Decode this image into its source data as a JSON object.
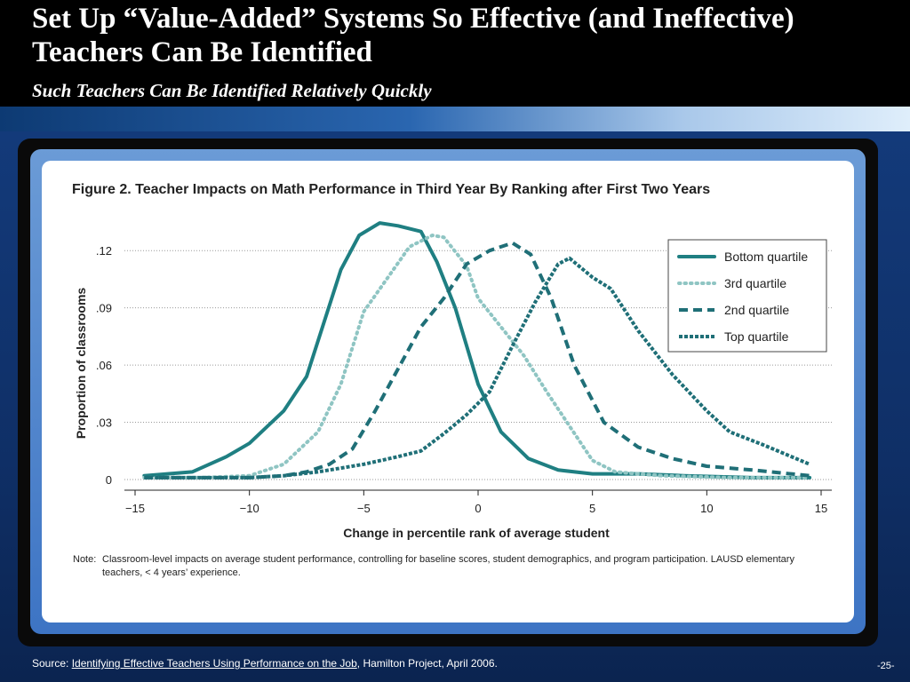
{
  "slide": {
    "title": "Set Up “Value-Added” Systems So Effective (and Ineffective) Teachers Can Be Identified",
    "subtitle": "Such Teachers Can Be Identified Relatively Quickly",
    "source_prefix": "Source: ",
    "source_link": "Identifying Effective Teachers Using Performance on the Job",
    "source_suffix": ", Hamilton Project, April 2006.",
    "page_number": "-25-"
  },
  "figure": {
    "title": "Figure 2. Teacher Impacts on Math Performance in Third Year By Ranking after First Two Years",
    "note_label": "Note:",
    "note_text": "Classroom-level impacts on average student performance, controlling for baseline scores, student demographics, and program participation. LAUSD elementary teachers, < 4 years’ experience."
  },
  "chart_data": {
    "type": "line",
    "title": "Figure 2. Teacher Impacts on Math Performance in Third Year By Ranking after First Two Years",
    "xlabel": "Change in percentile rank of average student",
    "ylabel": "Proportion of classrooms",
    "xlim": [
      -15,
      15
    ],
    "ylim": [
      0,
      0.135
    ],
    "x_ticks": [
      -15,
      -10,
      -5,
      0,
      5,
      10,
      15
    ],
    "x_tick_labels": [
      "−15",
      "−10",
      "−5",
      "0",
      "5",
      "10",
      "15"
    ],
    "y_ticks": [
      0,
      0.03,
      0.06,
      0.09,
      0.12
    ],
    "y_tick_labels": [
      "0",
      ".03",
      ".06",
      ".09",
      ".12"
    ],
    "grid": "horizontal dotted",
    "legend_position": "top-right",
    "series": [
      {
        "name": "Bottom quartile",
        "color": "#1f7f82",
        "dash": "solid",
        "points": [
          [
            -14.6,
            0.002
          ],
          [
            -12.5,
            0.004
          ],
          [
            -11,
            0.012
          ],
          [
            -10,
            0.019
          ],
          [
            -8.5,
            0.036
          ],
          [
            -7.5,
            0.054
          ],
          [
            -6,
            0.11
          ],
          [
            -5.2,
            0.128
          ],
          [
            -4.3,
            0.1345
          ],
          [
            -3.5,
            0.133
          ],
          [
            -2.5,
            0.13
          ],
          [
            -1.8,
            0.114
          ],
          [
            -1,
            0.09
          ],
          [
            0,
            0.05
          ],
          [
            1,
            0.025
          ],
          [
            2.2,
            0.011
          ],
          [
            3.5,
            0.005
          ],
          [
            5,
            0.003
          ],
          [
            7,
            0.003
          ],
          [
            9,
            0.002
          ],
          [
            12,
            0.001
          ],
          [
            14.5,
            0.001
          ]
        ]
      },
      {
        "name": "3rd quartile",
        "color": "#8fc5c3",
        "dash": "dotted",
        "points": [
          [
            -14.6,
            0.001
          ],
          [
            -12,
            0.001
          ],
          [
            -10,
            0.002
          ],
          [
            -8.5,
            0.008
          ],
          [
            -7,
            0.025
          ],
          [
            -6,
            0.05
          ],
          [
            -5,
            0.088
          ],
          [
            -4,
            0.105
          ],
          [
            -3,
            0.122
          ],
          [
            -2,
            0.128
          ],
          [
            -1.5,
            0.127
          ],
          [
            -0.5,
            0.112
          ],
          [
            0,
            0.095
          ],
          [
            1,
            0.08
          ],
          [
            2,
            0.065
          ],
          [
            3,
            0.046
          ],
          [
            4,
            0.028
          ],
          [
            5,
            0.01
          ],
          [
            6,
            0.004
          ],
          [
            8,
            0.002
          ],
          [
            11,
            0.001
          ],
          [
            14.5,
            0.001
          ]
        ]
      },
      {
        "name": "2nd quartile",
        "color": "#1f6f77",
        "dash": "dashed",
        "points": [
          [
            -14.6,
            0.001
          ],
          [
            -10,
            0.001
          ],
          [
            -8.5,
            0.002
          ],
          [
            -7.5,
            0.004
          ],
          [
            -6.5,
            0.008
          ],
          [
            -5.5,
            0.016
          ],
          [
            -4.5,
            0.036
          ],
          [
            -3.5,
            0.058
          ],
          [
            -2.5,
            0.08
          ],
          [
            -1.5,
            0.095
          ],
          [
            -0.5,
            0.113
          ],
          [
            0.5,
            0.12
          ],
          [
            1.5,
            0.124
          ],
          [
            2.3,
            0.118
          ],
          [
            3.2,
            0.095
          ],
          [
            4.2,
            0.06
          ],
          [
            5.5,
            0.03
          ],
          [
            7,
            0.017
          ],
          [
            8.5,
            0.011
          ],
          [
            10,
            0.007
          ],
          [
            12,
            0.005
          ],
          [
            14.5,
            0.002
          ]
        ]
      },
      {
        "name": "Top quartile",
        "color": "#1f6f77",
        "dash": "dense",
        "points": [
          [
            -14.6,
            0.001
          ],
          [
            -10,
            0.001
          ],
          [
            -8.5,
            0.002
          ],
          [
            -7,
            0.004
          ],
          [
            -5,
            0.008
          ],
          [
            -3.5,
            0.012
          ],
          [
            -2.5,
            0.015
          ],
          [
            -1.5,
            0.024
          ],
          [
            -0.5,
            0.034
          ],
          [
            0.5,
            0.046
          ],
          [
            1.5,
            0.07
          ],
          [
            2.5,
            0.093
          ],
          [
            3.5,
            0.113
          ],
          [
            4,
            0.116
          ],
          [
            5,
            0.106
          ],
          [
            5.8,
            0.1
          ],
          [
            7,
            0.078
          ],
          [
            8.5,
            0.055
          ],
          [
            10,
            0.036
          ],
          [
            11,
            0.025
          ],
          [
            12.5,
            0.018
          ],
          [
            14.5,
            0.008
          ]
        ]
      }
    ]
  }
}
